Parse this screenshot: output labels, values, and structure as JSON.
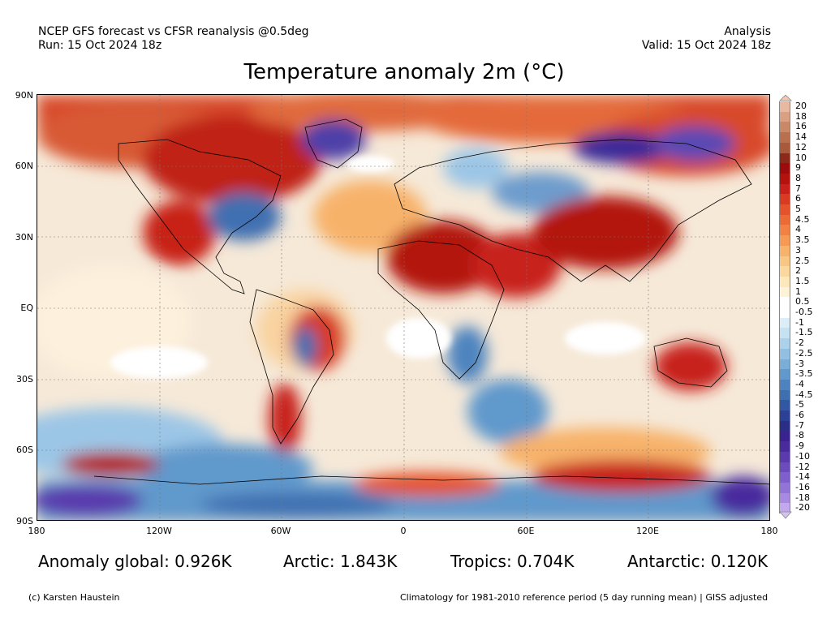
{
  "header": {
    "left_line1": "NCEP GFS forecast vs CFSR reanalysis @0.5deg",
    "left_line2": "Run: 15 Oct 2024 18z",
    "right_line1": "Analysis",
    "right_line2": "Valid: 15 Oct 2024 18z"
  },
  "title": "Temperature anomaly 2m (°C)",
  "lat_labels": [
    "90N",
    "60N",
    "30N",
    "EQ",
    "30S",
    "60S",
    "90S"
  ],
  "lon_labels": [
    "180",
    "120W",
    "60W",
    "0",
    "60E",
    "120E",
    "180"
  ],
  "colorbar": {
    "labels": [
      "20",
      "18",
      "16",
      "14",
      "12",
      "10",
      "9",
      "8",
      "7",
      "6",
      "5",
      "4.5",
      "4",
      "3.5",
      "3",
      "2.5",
      "2",
      "1.5",
      "1",
      "0.5",
      "-0.5",
      "-1",
      "-1.5",
      "-2",
      "-2.5",
      "-3",
      "-3.5",
      "-4",
      "-4.5",
      "-5",
      "-6",
      "-7",
      "-8",
      "-9",
      "-10",
      "-12",
      "-14",
      "-16",
      "-18",
      "-20"
    ],
    "colors": [
      "#e8b8a0",
      "#d9a084",
      "#c98868",
      "#b8704f",
      "#a85a3c",
      "#8b2a1a",
      "#9c0c0c",
      "#b3120f",
      "#c8201a",
      "#d83a22",
      "#e5532c",
      "#ec6a36",
      "#f28243",
      "#f59a55",
      "#f7b26b",
      "#f9c784",
      "#fbd99e",
      "#fde8bb",
      "#fef3d6",
      "#ffffff",
      "#ffffff",
      "#dbeef8",
      "#c6e2f2",
      "#acd1ea",
      "#93c0e1",
      "#7aaed8",
      "#6199cc",
      "#4d84bf",
      "#3f6fb1",
      "#3358a3",
      "#2a4195",
      "#2b2e86",
      "#3a2390",
      "#4a2b9e",
      "#5a3aad",
      "#6c4bbd",
      "#7e5fcb",
      "#9273d7",
      "#a88ae2",
      "#c2a9ee"
    ]
  },
  "stats": {
    "global": "Anomaly global: 0.926K",
    "arctic": "Arctic: 1.843K",
    "tropics": "Tropics: 0.704K",
    "antarctic": "Antarctic: 0.120K"
  },
  "footer": {
    "credit": "(c) Karsten Haustein",
    "note": "Climatology for 1981-2010 reference period (5 day running mean) | GISS adjusted"
  }
}
